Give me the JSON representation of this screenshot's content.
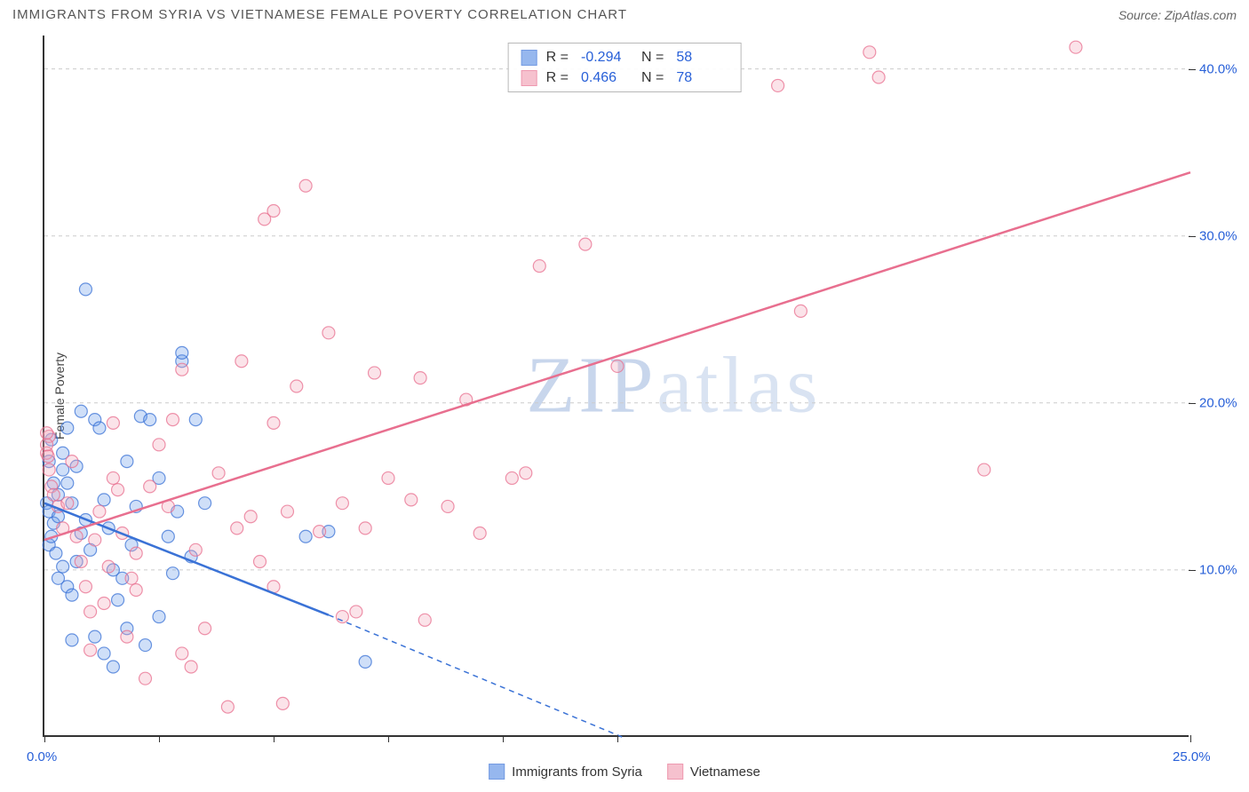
{
  "title": "IMMIGRANTS FROM SYRIA VS VIETNAMESE FEMALE POVERTY CORRELATION CHART",
  "source_label": "Source:",
  "source_name": "ZipAtlas.com",
  "ylabel": "Female Poverty",
  "watermark_a": "ZIP",
  "watermark_b": "atlas",
  "chart": {
    "type": "scatter",
    "background_color": "#ffffff",
    "grid_color": "#cccccc",
    "axis_color": "#333333",
    "xlim": [
      0,
      25
    ],
    "ylim": [
      0,
      42
    ],
    "xticks": [
      0,
      2.5,
      5,
      7.5,
      10,
      12.5,
      25
    ],
    "xtick_labels": {
      "0": "0.0%",
      "25": "25.0%"
    },
    "yticks": [
      10,
      20,
      30,
      40
    ],
    "ytick_labels": {
      "10": "10.0%",
      "20": "20.0%",
      "30": "30.0%",
      "40": "40.0%"
    },
    "label_color": "#2860d8",
    "label_fontsize": 15,
    "marker_radius": 7,
    "marker_opacity_fill": 0.32,
    "marker_opacity_stroke": 0.75,
    "stroke_width": 1.2
  },
  "series": [
    {
      "name": "Immigrants from Syria",
      "color": "#6a9ae8",
      "color_stroke": "#3a72d6",
      "R": "-0.294",
      "N": "58",
      "trend": {
        "x1": 0,
        "y1": 14.0,
        "x2": 6.2,
        "y2": 7.3,
        "ext_x2": 12.6,
        "ext_y2": 0
      },
      "points": [
        [
          0.1,
          16.5
        ],
        [
          0.15,
          17.8
        ],
        [
          0.2,
          15.2
        ],
        [
          0.05,
          14.0
        ],
        [
          0.1,
          13.5
        ],
        [
          0.2,
          12.8
        ],
        [
          0.3,
          13.2
        ],
        [
          0.1,
          11.5
        ],
        [
          0.15,
          12.0
        ],
        [
          0.25,
          11.0
        ],
        [
          0.3,
          14.5
        ],
        [
          0.4,
          16.0
        ],
        [
          0.5,
          15.2
        ],
        [
          0.6,
          14.0
        ],
        [
          0.3,
          9.5
        ],
        [
          0.4,
          10.2
        ],
        [
          0.5,
          9.0
        ],
        [
          0.6,
          8.5
        ],
        [
          0.7,
          10.5
        ],
        [
          0.8,
          12.2
        ],
        [
          0.9,
          13.0
        ],
        [
          1.0,
          11.2
        ],
        [
          1.1,
          19.0
        ],
        [
          1.2,
          18.5
        ],
        [
          1.3,
          14.2
        ],
        [
          1.4,
          12.5
        ],
        [
          1.5,
          10.0
        ],
        [
          1.6,
          8.2
        ],
        [
          1.7,
          9.5
        ],
        [
          1.8,
          6.5
        ],
        [
          1.9,
          11.5
        ],
        [
          2.0,
          13.8
        ],
        [
          2.1,
          19.2
        ],
        [
          2.3,
          19.0
        ],
        [
          2.5,
          15.5
        ],
        [
          2.7,
          12.0
        ],
        [
          2.8,
          9.8
        ],
        [
          3.0,
          22.5
        ],
        [
          3.0,
          23.0
        ],
        [
          3.3,
          19.0
        ],
        [
          0.9,
          26.8
        ],
        [
          1.1,
          6.0
        ],
        [
          1.3,
          5.0
        ],
        [
          2.2,
          5.5
        ],
        [
          2.5,
          7.2
        ],
        [
          1.5,
          4.2
        ],
        [
          1.8,
          16.5
        ],
        [
          0.8,
          19.5
        ],
        [
          3.5,
          14.0
        ],
        [
          0.4,
          17.0
        ],
        [
          0.5,
          18.5
        ],
        [
          0.7,
          16.2
        ],
        [
          6.2,
          12.3
        ],
        [
          0.6,
          5.8
        ],
        [
          5.7,
          12.0
        ],
        [
          7.0,
          4.5
        ],
        [
          3.2,
          10.8
        ],
        [
          2.9,
          13.5
        ]
      ]
    },
    {
      "name": "Vietnamese",
      "color": "#f3a8ba",
      "color_stroke": "#e86f8f",
      "R": "0.466",
      "N": "78",
      "trend": {
        "x1": 0,
        "y1": 11.8,
        "x2": 25,
        "y2": 33.8
      },
      "points": [
        [
          0.05,
          17.0
        ],
        [
          0.1,
          18.0
        ],
        [
          0.1,
          16.0
        ],
        [
          0.15,
          15.0
        ],
        [
          0.2,
          14.5
        ],
        [
          0.3,
          13.8
        ],
        [
          0.4,
          12.5
        ],
        [
          0.5,
          14.0
        ],
        [
          0.6,
          16.5
        ],
        [
          0.7,
          12.0
        ],
        [
          0.8,
          10.5
        ],
        [
          0.9,
          9.0
        ],
        [
          1.0,
          7.5
        ],
        [
          1.1,
          11.8
        ],
        [
          1.2,
          13.5
        ],
        [
          1.3,
          8.0
        ],
        [
          1.4,
          10.2
        ],
        [
          1.5,
          18.8
        ],
        [
          1.6,
          14.8
        ],
        [
          1.7,
          12.2
        ],
        [
          1.8,
          6.0
        ],
        [
          1.9,
          9.5
        ],
        [
          2.0,
          11.0
        ],
        [
          2.2,
          3.5
        ],
        [
          2.3,
          15.0
        ],
        [
          2.5,
          17.5
        ],
        [
          2.7,
          13.8
        ],
        [
          3.0,
          22.0
        ],
        [
          3.0,
          5.0
        ],
        [
          3.2,
          4.2
        ],
        [
          3.3,
          11.2
        ],
        [
          3.5,
          6.5
        ],
        [
          3.8,
          15.8
        ],
        [
          4.0,
          1.8
        ],
        [
          4.2,
          12.5
        ],
        [
          4.5,
          13.2
        ],
        [
          4.7,
          10.5
        ],
        [
          4.8,
          31.0
        ],
        [
          5.0,
          9.0
        ],
        [
          5.0,
          31.5
        ],
        [
          5.0,
          18.8
        ],
        [
          5.3,
          13.5
        ],
        [
          5.5,
          21.0
        ],
        [
          5.7,
          33.0
        ],
        [
          6.0,
          12.3
        ],
        [
          6.2,
          24.2
        ],
        [
          6.5,
          14.0
        ],
        [
          6.8,
          7.5
        ],
        [
          7.0,
          12.5
        ],
        [
          7.2,
          21.8
        ],
        [
          7.5,
          15.5
        ],
        [
          8.0,
          14.2
        ],
        [
          8.2,
          21.5
        ],
        [
          8.3,
          7.0
        ],
        [
          8.8,
          13.8
        ],
        [
          9.2,
          20.2
        ],
        [
          9.5,
          12.2
        ],
        [
          10.2,
          15.5
        ],
        [
          10.5,
          15.8
        ],
        [
          10.8,
          28.2
        ],
        [
          11.8,
          29.5
        ],
        [
          12.5,
          22.2
        ],
        [
          16.0,
          39.0
        ],
        [
          16.5,
          25.5
        ],
        [
          18.0,
          41.0
        ],
        [
          18.2,
          39.5
        ],
        [
          20.5,
          16.0
        ],
        [
          22.5,
          41.3
        ],
        [
          5.2,
          2.0
        ],
        [
          4.3,
          22.5
        ],
        [
          2.8,
          19.0
        ],
        [
          0.05,
          17.5
        ],
        [
          0.05,
          18.2
        ],
        [
          0.08,
          16.8
        ],
        [
          1.0,
          5.2
        ],
        [
          1.5,
          15.5
        ],
        [
          2.0,
          8.8
        ],
        [
          6.5,
          7.2
        ]
      ]
    }
  ],
  "legend_top": {
    "R_label": "R",
    "N_label": "N",
    "eq": "="
  }
}
